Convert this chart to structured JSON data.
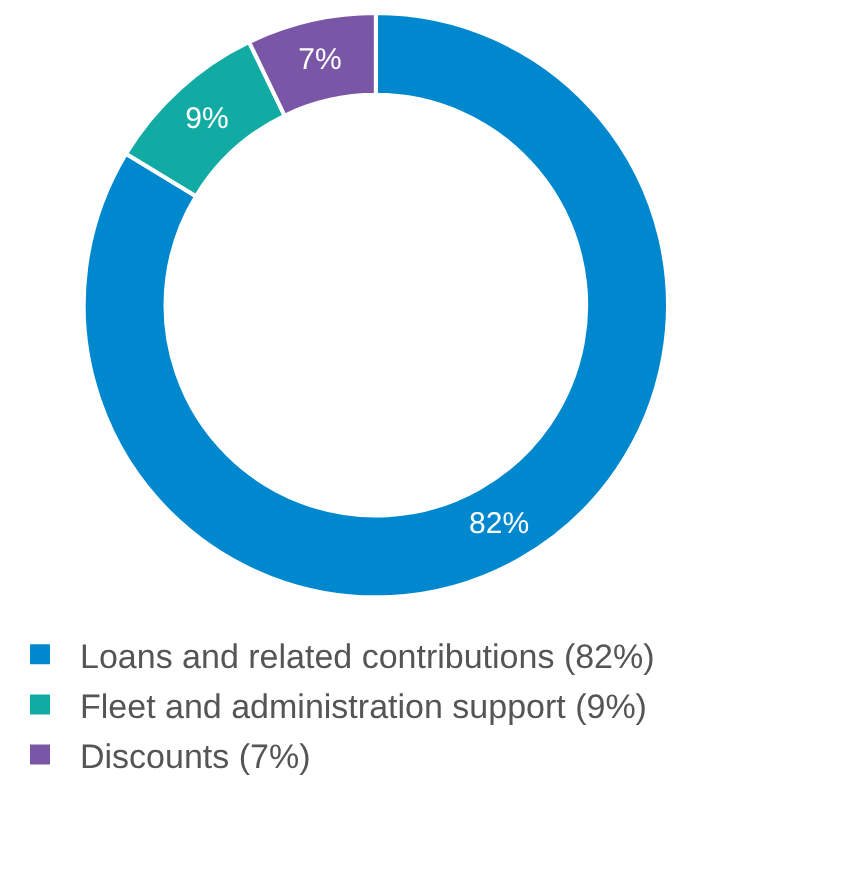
{
  "chart_data": {
    "type": "donut",
    "categories": [
      "Loans and related contributions (82%)",
      "Fleet and administration support (9%)",
      "Discounts (7%)"
    ],
    "values": [
      82,
      9,
      7
    ],
    "value_labels": [
      "82%",
      "9%",
      "7%"
    ],
    "colors": [
      "#0088cf",
      "#12aba3",
      "#7a56a6"
    ],
    "legend": "bottom"
  }
}
